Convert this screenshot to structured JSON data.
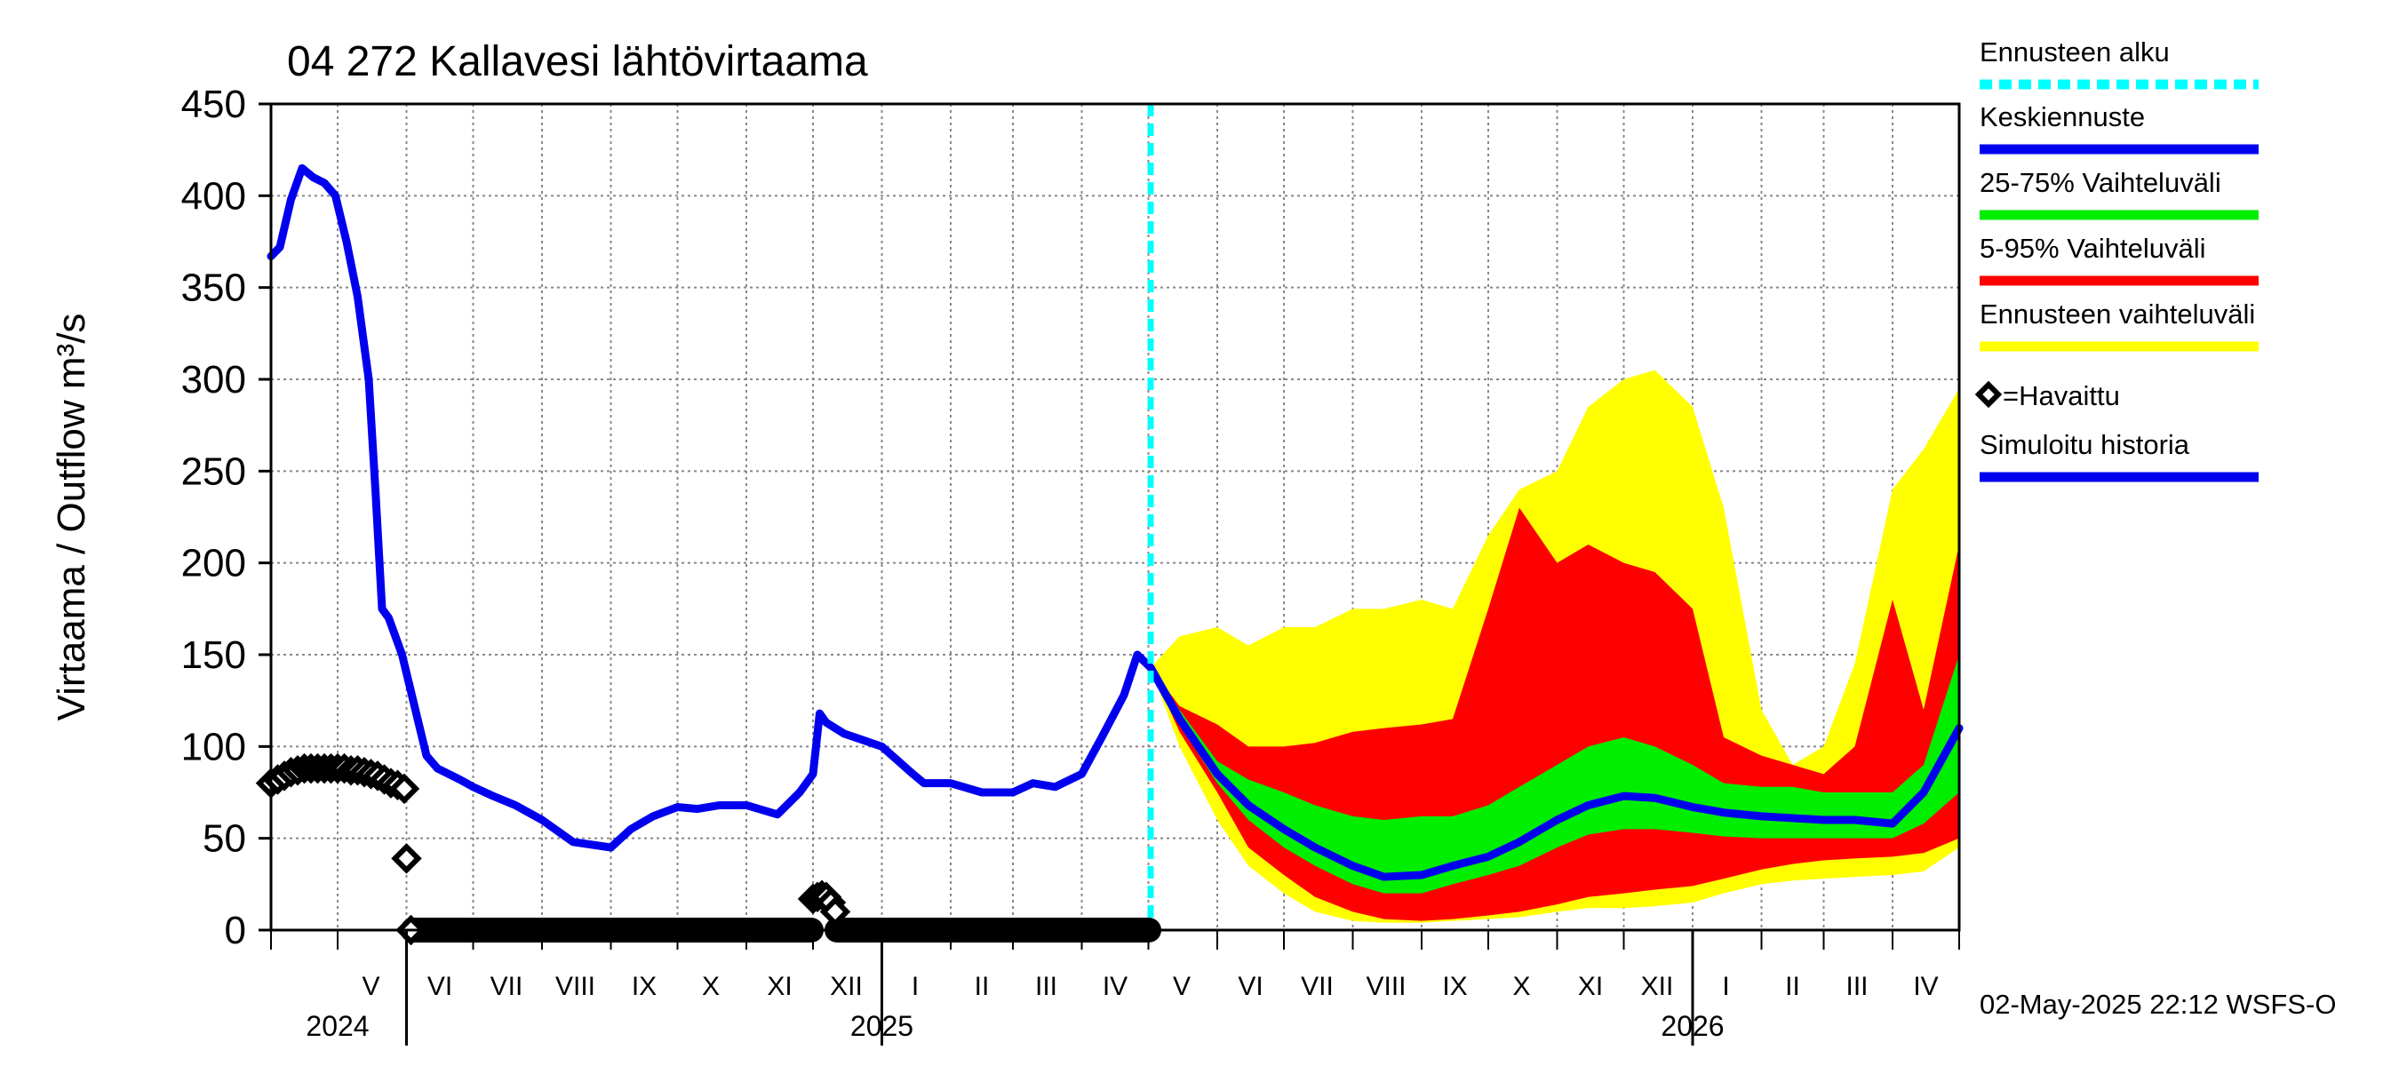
{
  "chart_data": {
    "type": "area",
    "title": "04 272 Kallavesi lähtövirtaama",
    "ylabel": "Virtaama / Outflow    m³/s",
    "ylim": [
      0,
      450
    ],
    "yticks": [
      0,
      50,
      100,
      150,
      200,
      250,
      300,
      350,
      400,
      450
    ],
    "xlim": [
      "2024-04-01",
      "2026-05-01"
    ],
    "grid": true,
    "legend_position": "right",
    "forecast_start": "2025-05-02",
    "month_labels": [
      {
        "label": "V",
        "date": "2024-05-16"
      },
      {
        "label": "VI",
        "date": "2024-06-16"
      },
      {
        "label": "VII",
        "date": "2024-07-16"
      },
      {
        "label": "VIII",
        "date": "2024-08-16"
      },
      {
        "label": "IX",
        "date": "2024-09-16"
      },
      {
        "label": "X",
        "date": "2024-10-16"
      },
      {
        "label": "XI",
        "date": "2024-11-16"
      },
      {
        "label": "XII",
        "date": "2024-12-16"
      },
      {
        "label": "I",
        "date": "2025-01-16"
      },
      {
        "label": "II",
        "date": "2025-02-15"
      },
      {
        "label": "III",
        "date": "2025-03-16"
      },
      {
        "label": "IV",
        "date": "2025-04-16"
      },
      {
        "label": "V",
        "date": "2025-05-16"
      },
      {
        "label": "VI",
        "date": "2025-06-16"
      },
      {
        "label": "VII",
        "date": "2025-07-16"
      },
      {
        "label": "VIII",
        "date": "2025-08-16"
      },
      {
        "label": "IX",
        "date": "2025-09-16"
      },
      {
        "label": "X",
        "date": "2025-10-16"
      },
      {
        "label": "XI",
        "date": "2025-11-16"
      },
      {
        "label": "XII",
        "date": "2025-12-16"
      },
      {
        "label": "I",
        "date": "2026-01-16"
      },
      {
        "label": "II",
        "date": "2026-02-15"
      },
      {
        "label": "III",
        "date": "2026-03-16"
      },
      {
        "label": "IV",
        "date": "2026-04-16"
      }
    ],
    "year_labels": [
      {
        "label": "2024",
        "date": "2024-05-01"
      },
      {
        "label": "2025",
        "date": "2025-01-01"
      },
      {
        "label": "2026",
        "date": "2026-01-01"
      }
    ],
    "year_boundaries": [
      "2024-06-01",
      "2025-01-01",
      "2026-01-01"
    ],
    "series": [
      {
        "name": "Simuloitu historia",
        "kind": "line",
        "color": "#0000ee",
        "x": [
          "2024-04-01",
          "2024-04-05",
          "2024-04-10",
          "2024-04-15",
          "2024-04-20",
          "2024-04-25",
          "2024-04-30",
          "2024-05-05",
          "2024-05-10",
          "2024-05-15",
          "2024-05-18",
          "2024-05-21",
          "2024-05-24",
          "2024-05-27",
          "2024-05-30",
          "2024-06-05",
          "2024-06-10",
          "2024-06-15",
          "2024-06-20",
          "2024-06-25",
          "2024-07-01",
          "2024-07-10",
          "2024-07-20",
          "2024-08-01",
          "2024-08-15",
          "2024-09-01",
          "2024-09-10",
          "2024-09-20",
          "2024-10-01",
          "2024-10-10",
          "2024-10-20",
          "2024-11-01",
          "2024-11-15",
          "2024-11-25",
          "2024-12-01",
          "2024-12-04",
          "2024-12-07",
          "2024-12-15",
          "2025-01-01",
          "2025-01-15",
          "2025-01-20",
          "2025-02-01",
          "2025-02-15",
          "2025-03-01",
          "2025-03-10",
          "2025-03-20",
          "2025-04-01",
          "2025-04-10",
          "2025-04-20",
          "2025-04-26",
          "2025-05-02"
        ],
        "y": [
          367,
          372,
          398,
          415,
          410,
          407,
          400,
          375,
          345,
          300,
          240,
          175,
          170,
          160,
          150,
          120,
          95,
          88,
          85,
          82,
          78,
          73,
          68,
          60,
          48,
          45,
          55,
          62,
          67,
          66,
          68,
          68,
          63,
          75,
          85,
          118,
          113,
          107,
          100,
          85,
          80,
          80,
          75,
          75,
          80,
          78,
          85,
          105,
          128,
          150,
          143
        ]
      },
      {
        "name": "Keskiennuste",
        "kind": "line",
        "color": "#0000ee",
        "x": [
          "2025-05-02",
          "2025-05-15",
          "2025-06-01",
          "2025-06-15",
          "2025-07-01",
          "2025-07-15",
          "2025-08-01",
          "2025-08-15",
          "2025-09-01",
          "2025-09-15",
          "2025-10-01",
          "2025-10-15",
          "2025-11-01",
          "2025-11-15",
          "2025-12-01",
          "2025-12-15",
          "2026-01-01",
          "2026-01-15",
          "2026-02-01",
          "2026-02-15",
          "2026-03-01",
          "2026-03-15",
          "2026-04-01",
          "2026-04-15",
          "2026-05-01"
        ],
        "y": [
          143,
          115,
          85,
          68,
          55,
          45,
          35,
          29,
          30,
          35,
          40,
          48,
          60,
          68,
          73,
          72,
          67,
          64,
          62,
          61,
          60,
          60,
          58,
          75,
          110
        ]
      },
      {
        "name": "Ennusteen vaihteluväli",
        "kind": "band",
        "color": "#ffff00",
        "x": [
          "2025-05-02",
          "2025-05-15",
          "2025-06-01",
          "2025-06-15",
          "2025-07-01",
          "2025-07-15",
          "2025-08-01",
          "2025-08-15",
          "2025-09-01",
          "2025-09-15",
          "2025-10-01",
          "2025-10-15",
          "2025-11-01",
          "2025-11-15",
          "2025-12-01",
          "2025-12-15",
          "2026-01-01",
          "2026-01-15",
          "2026-02-01",
          "2026-02-15",
          "2026-03-01",
          "2026-03-15",
          "2026-04-01",
          "2026-04-15",
          "2026-05-01"
        ],
        "low": [
          143,
          100,
          60,
          35,
          20,
          10,
          5,
          4,
          4,
          5,
          6,
          7,
          10,
          12,
          12,
          13,
          15,
          20,
          25,
          27,
          28,
          29,
          30,
          32,
          45
        ],
        "high": [
          143,
          160,
          165,
          155,
          165,
          165,
          175,
          175,
          180,
          175,
          215,
          240,
          250,
          285,
          300,
          305,
          285,
          230,
          120,
          90,
          100,
          145,
          240,
          262,
          295
        ]
      },
      {
        "name": "5-95% Vaihteluväli",
        "kind": "band",
        "color": "#ff0000",
        "x": [
          "2025-05-02",
          "2025-05-15",
          "2025-06-01",
          "2025-06-15",
          "2025-07-01",
          "2025-07-15",
          "2025-08-01",
          "2025-08-15",
          "2025-09-01",
          "2025-09-15",
          "2025-10-01",
          "2025-10-15",
          "2025-11-01",
          "2025-11-15",
          "2025-12-01",
          "2025-12-15",
          "2026-01-01",
          "2026-01-15",
          "2026-02-01",
          "2026-02-15",
          "2026-03-01",
          "2026-03-15",
          "2026-04-01",
          "2026-04-15",
          "2026-05-01"
        ],
        "low": [
          143,
          108,
          75,
          45,
          30,
          18,
          10,
          6,
          5,
          6,
          8,
          10,
          14,
          18,
          20,
          22,
          24,
          28,
          33,
          36,
          38,
          39,
          40,
          42,
          50
        ],
        "high": [
          143,
          122,
          112,
          100,
          100,
          102,
          108,
          110,
          112,
          115,
          175,
          230,
          200,
          210,
          200,
          195,
          175,
          105,
          95,
          90,
          85,
          100,
          180,
          120,
          210
        ]
      },
      {
        "name": "25-75% Vaihteluväli",
        "kind": "band",
        "color": "#00ee00",
        "x": [
          "2025-05-02",
          "2025-05-15",
          "2025-06-01",
          "2025-06-15",
          "2025-07-01",
          "2025-07-15",
          "2025-08-01",
          "2025-08-15",
          "2025-09-01",
          "2025-09-15",
          "2025-10-01",
          "2025-10-15",
          "2025-11-01",
          "2025-11-15",
          "2025-12-01",
          "2025-12-15",
          "2026-01-01",
          "2026-01-15",
          "2026-02-01",
          "2026-02-15",
          "2026-03-01",
          "2026-03-15",
          "2026-04-01",
          "2026-04-15",
          "2026-05-01"
        ],
        "low": [
          143,
          112,
          80,
          60,
          45,
          35,
          25,
          20,
          20,
          25,
          30,
          35,
          45,
          52,
          55,
          55,
          53,
          51,
          50,
          50,
          50,
          50,
          50,
          58,
          75
        ],
        "high": [
          143,
          120,
          92,
          82,
          75,
          68,
          62,
          60,
          62,
          62,
          68,
          78,
          90,
          100,
          105,
          100,
          90,
          80,
          78,
          78,
          75,
          75,
          75,
          90,
          150
        ]
      },
      {
        "name": "=Havaittu",
        "kind": "observed",
        "color": "#000000",
        "x": [
          "2024-04-01",
          "2024-04-04",
          "2024-04-07",
          "2024-04-10",
          "2024-04-13",
          "2024-04-16",
          "2024-04-19",
          "2024-04-22",
          "2024-04-25",
          "2024-04-28",
          "2024-05-01",
          "2024-05-04",
          "2024-05-07",
          "2024-05-10",
          "2024-05-13",
          "2024-05-16",
          "2024-05-19",
          "2024-05-22",
          "2024-05-25",
          "2024-05-28",
          "2024-05-31",
          "2024-06-01",
          "2024-06-03",
          "2024-12-01",
          "2024-12-03",
          "2024-12-05",
          "2024-12-07",
          "2024-12-09",
          "2024-12-11"
        ],
        "y": [
          80,
          82,
          84,
          86,
          87,
          88,
          88,
          88,
          88,
          88,
          88,
          88,
          87,
          87,
          86,
          85,
          84,
          82,
          80,
          79,
          77,
          39,
          0,
          17,
          18,
          19,
          18,
          15,
          10
        ],
        "zero_runs": [
          [
            "2024-06-03",
            "2024-12-01"
          ],
          [
            "2024-12-11",
            "2025-05-02"
          ]
        ]
      }
    ]
  },
  "legend": [
    {
      "label": "Ennusteen alku",
      "color": "#00ffff",
      "style": "dashed"
    },
    {
      "label": "Keskiennuste",
      "color": "#0000ee",
      "style": "solid"
    },
    {
      "label": "25-75% Vaihteluväli",
      "color": "#00ee00",
      "style": "solid"
    },
    {
      "label": "5-95% Vaihteluväli",
      "color": "#ff0000",
      "style": "solid"
    },
    {
      "label": "Ennusteen vaihteluväli",
      "color": "#ffff00",
      "style": "solid"
    },
    {
      "label": "=Havaittu",
      "color": "#000000",
      "style": "marker"
    },
    {
      "label": "Simuloitu historia",
      "color": "#0000ee",
      "style": "solid"
    }
  ],
  "footer": "02-May-2025 22:12 WSFS-O"
}
